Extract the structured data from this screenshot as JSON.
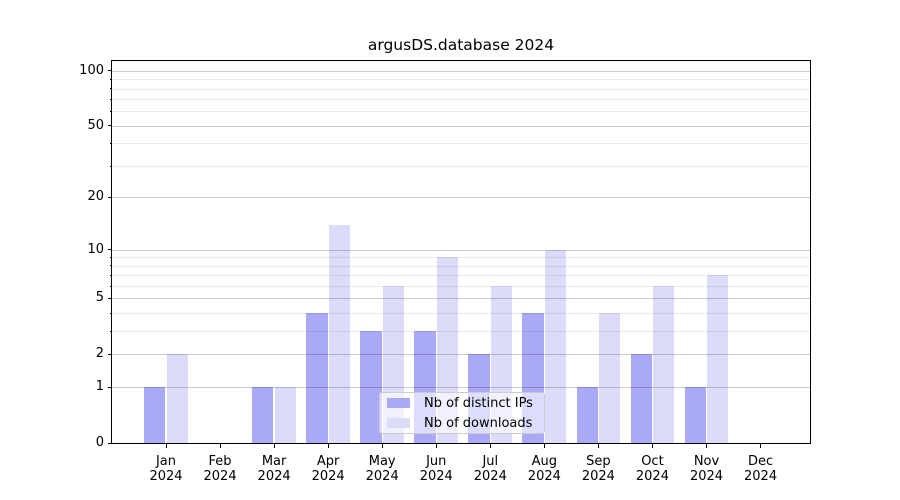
{
  "title": "argusDS.database 2024",
  "chart_data": {
    "type": "bar",
    "title": "argusDS.database 2024",
    "categories": [
      "Jan 2024",
      "Feb 2024",
      "Mar 2024",
      "Apr 2024",
      "May 2024",
      "Jun 2024",
      "Jul 2024",
      "Aug 2024",
      "Sep 2024",
      "Oct 2024",
      "Nov 2024",
      "Dec 2024"
    ],
    "series": [
      {
        "name": "Nb of distinct IPs",
        "color": "#a9a9f8",
        "values": [
          1,
          0,
          1,
          4,
          3,
          3,
          2,
          4,
          1,
          2,
          1,
          0
        ]
      },
      {
        "name": "Nb of downloads",
        "color": "#dcdcfa",
        "values": [
          2,
          0,
          1,
          14,
          6,
          9,
          6,
          10,
          4,
          6,
          7,
          0
        ]
      }
    ],
    "xlabel": "",
    "ylabel": "",
    "yscale": "log1p",
    "ylim": [
      0,
      113
    ],
    "y_major_ticks": [
      0,
      1,
      2,
      5,
      10,
      20,
      50,
      100
    ],
    "y_tick_labels": [
      "0",
      "1",
      "2",
      "5",
      "10",
      "20",
      "50",
      "100"
    ],
    "y_minor_gridlines": [
      3,
      4,
      6,
      7,
      8,
      9,
      30,
      40,
      60,
      70,
      80,
      90
    ],
    "grid": true,
    "legend_position": "lower center"
  },
  "legend": {
    "items": [
      {
        "label": "Nb of distinct IPs",
        "color": "#a9a9f8"
      },
      {
        "label": "Nb of downloads",
        "color": "#dcdcfa"
      }
    ]
  },
  "colors": {
    "background": "#ffffff",
    "bar_ips": "#a9a9f8",
    "bar_downloads": "#dcdcfa",
    "major_grid": "rgba(0,0,0,0.20)",
    "minor_grid": "rgba(0,0,0,0.08)",
    "spine": "#000000",
    "text": "#000000",
    "legend_border": "#cccccc"
  }
}
